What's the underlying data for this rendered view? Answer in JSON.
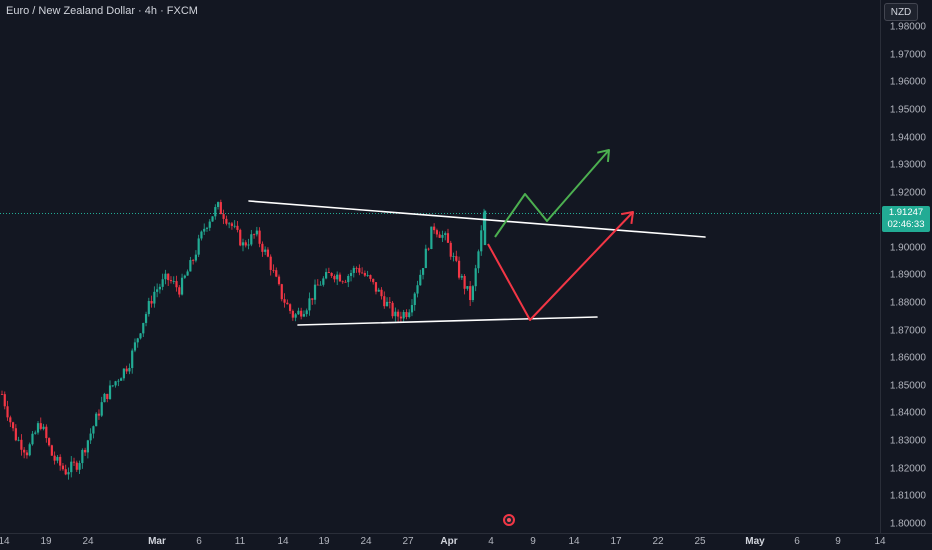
{
  "header": {
    "title": "Euro / New Zealand Dollar · 4h · FXCM",
    "currency": "NZD"
  },
  "colors": {
    "background": "#131722",
    "up": "#22ab94",
    "down": "#f23645",
    "trendline": "#ffffff",
    "bullish_arrow": "#4caf50",
    "bearish_arrow": "#f23645"
  },
  "price_axis": {
    "ticks": [
      "1.98000",
      "1.97000",
      "1.96000",
      "1.95000",
      "1.94000",
      "1.93000",
      "1.92000",
      "1.91000",
      "1.90000",
      "1.89000",
      "1.88000",
      "1.87000",
      "1.86000",
      "1.85000",
      "1.84000",
      "1.83000",
      "1.82000",
      "1.81000",
      "1.80000"
    ]
  },
  "last_price": {
    "value": "1.91247",
    "countdown": "02:46:33"
  },
  "time_axis": {
    "ticks": [
      {
        "label": "14",
        "bold": false
      },
      {
        "label": "19",
        "bold": false
      },
      {
        "label": "24",
        "bold": false
      },
      {
        "label": "Mar",
        "bold": true
      },
      {
        "label": "6",
        "bold": false
      },
      {
        "label": "11",
        "bold": false
      },
      {
        "label": "14",
        "bold": false
      },
      {
        "label": "19",
        "bold": false
      },
      {
        "label": "24",
        "bold": false
      },
      {
        "label": "27",
        "bold": false
      },
      {
        "label": "Apr",
        "bold": true
      },
      {
        "label": "4",
        "bold": false
      },
      {
        "label": "9",
        "bold": false
      },
      {
        "label": "14",
        "bold": false
      },
      {
        "label": "17",
        "bold": false
      },
      {
        "label": "22",
        "bold": false
      },
      {
        "label": "25",
        "bold": false
      },
      {
        "label": "May",
        "bold": true
      },
      {
        "label": "6",
        "bold": false
      },
      {
        "label": "9",
        "bold": false
      },
      {
        "label": "14",
        "bold": false
      }
    ]
  },
  "chart_data": {
    "type": "candlestick",
    "price_path": [
      1.847,
      1.832,
      1.826,
      1.837,
      1.824,
      1.819,
      1.822,
      1.833,
      1.845,
      1.852,
      1.858,
      1.872,
      1.884,
      1.889,
      1.885,
      1.895,
      1.908,
      1.915,
      1.909,
      1.901,
      1.905,
      1.896,
      1.883,
      1.875,
      1.879,
      1.887,
      1.891,
      1.889,
      1.893,
      1.888,
      1.882,
      1.875,
      1.877,
      1.891,
      1.908,
      1.903,
      1.891,
      1.881,
      1.912
    ],
    "ylim": [
      1.8,
      1.985
    ],
    "trendlines": [
      {
        "name": "descending-resistance",
        "from": [
          1.9175
        ],
        "to": [
          1.9035
        ]
      },
      {
        "name": "rising-support",
        "from": [
          1.8725
        ],
        "to": [
          1.8752
        ]
      }
    ]
  }
}
